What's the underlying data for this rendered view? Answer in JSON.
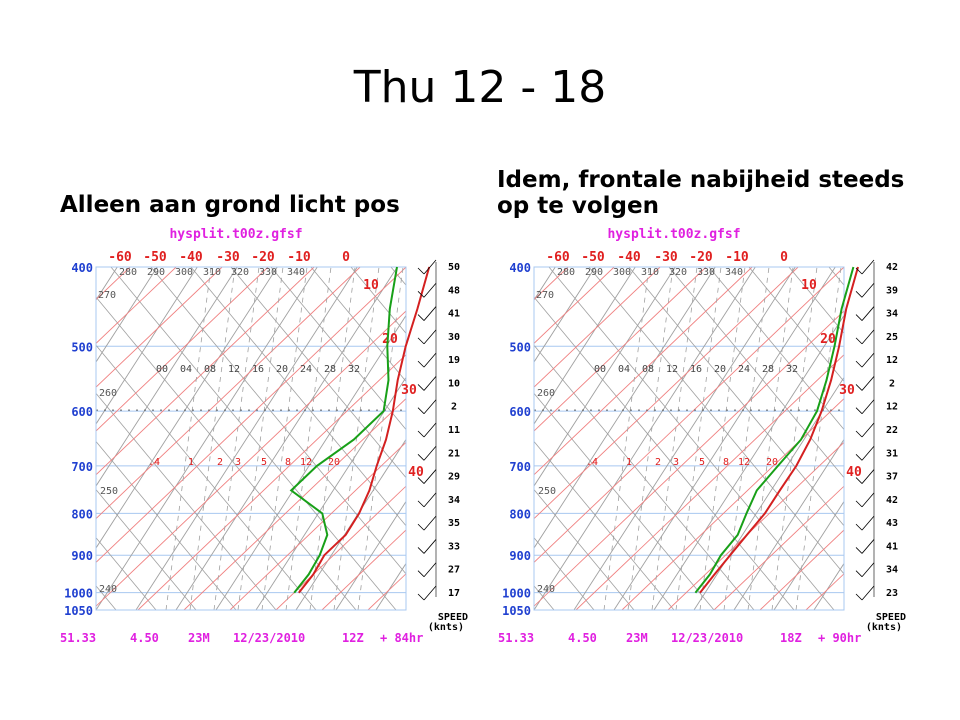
{
  "slide": {
    "title": "Thu 12 - 18",
    "left_caption": "Alleen aan grond licht pos",
    "right_caption": "Idem, frontale nabijheid steeds op te volgen"
  },
  "colors": {
    "temperature": "#d42020",
    "dewpoint": "#18a018",
    "isotherm": "#f08080",
    "dry_adiabat": "#a0a0a0",
    "pressure_label": "#2040d0",
    "temp_label": "#e02020",
    "footer": "#e020e0",
    "grid": "#a8c8f0"
  },
  "chart_data": [
    {
      "type": "line",
      "title": "hysplit.t00z.gfsf",
      "y_axis": {
        "label": "pressure (hPa)",
        "ticks": [
          "400",
          "500",
          "600",
          "700",
          "800",
          "900",
          "1000",
          "1050"
        ],
        "range": [
          400,
          1050
        ],
        "scale": "log"
      },
      "x_axis": {
        "label": "temperature (C), skewed",
        "ticks": [
          "-60",
          "-50",
          "-40",
          "-30",
          "-20",
          "-10",
          "0",
          "10",
          "20",
          "30",
          "40"
        ],
        "range": [
          -40,
          40
        ]
      },
      "potential_temp_labels": [
        "280",
        "290",
        "300",
        "310",
        "320",
        "330",
        "340",
        "270",
        "260",
        "250",
        "240"
      ],
      "mixing_ratio_labels_upper": [
        "00",
        "04",
        "08",
        "12",
        "16",
        "20",
        "24",
        "28",
        "32"
      ],
      "mixing_ratio_labels_lower": [
        ".4",
        "1",
        "2",
        "3",
        "5",
        "8",
        "12",
        "20"
      ],
      "series": [
        {
          "name": "temperature",
          "p": [
            1000,
            950,
            900,
            850,
            800,
            750,
            700,
            650,
            600,
            550,
            500,
            450,
            400
          ],
          "t": [
            11,
            10,
            8,
            8,
            6,
            3,
            -1,
            -5,
            -10,
            -16,
            -22,
            -28,
            -35
          ]
        },
        {
          "name": "dewpoint",
          "p": [
            1000,
            950,
            900,
            850,
            800,
            750,
            700,
            650,
            600,
            550,
            500,
            450,
            400
          ],
          "t": [
            10,
            9,
            7,
            4,
            -2,
            -14,
            -14,
            -12,
            -12,
            -18,
            -26,
            -34,
            -42
          ]
        }
      ],
      "wind_speeds_knots": [
        "50",
        "48",
        "41",
        "30",
        "19",
        "10",
        "2",
        "11",
        "21",
        "29",
        "34",
        "35",
        "33",
        "27",
        "17"
      ],
      "wind_legend": [
        "SPEED",
        "(knts)"
      ],
      "footer": {
        "lat": "51.33",
        "lon": "4.50",
        "elev": "23M",
        "date": "12/23/2010",
        "time": "12Z",
        "forecast": "+ 84hr"
      }
    },
    {
      "type": "line",
      "title": "hysplit.t00z.gfsf",
      "y_axis": {
        "label": "pressure (hPa)",
        "ticks": [
          "400",
          "500",
          "600",
          "700",
          "800",
          "900",
          "1000",
          "1050"
        ],
        "range": [
          400,
          1050
        ],
        "scale": "log"
      },
      "x_axis": {
        "label": "temperature (C), skewed",
        "ticks": [
          "-60",
          "-50",
          "-40",
          "-30",
          "-20",
          "-10",
          "0",
          "10",
          "20",
          "30",
          "40"
        ],
        "range": [
          -40,
          40
        ]
      },
      "potential_temp_labels": [
        "280",
        "290",
        "300",
        "310",
        "320",
        "330",
        "340",
        "270",
        "260",
        "250",
        "240"
      ],
      "mixing_ratio_labels_upper": [
        "00",
        "04",
        "08",
        "12",
        "16",
        "20",
        "24",
        "28",
        "32"
      ],
      "mixing_ratio_labels_lower": [
        ".4",
        "1",
        "2",
        "3",
        "5",
        "8",
        "12",
        "20"
      ],
      "series": [
        {
          "name": "temperature",
          "p": [
            1000,
            950,
            900,
            850,
            800,
            750,
            700,
            650,
            600,
            550,
            500,
            450,
            400
          ],
          "t": [
            3,
            2,
            1,
            0,
            -1,
            -3,
            -5,
            -8,
            -12,
            -17,
            -23,
            -30,
            -37
          ]
        },
        {
          "name": "dewpoint",
          "p": [
            1000,
            950,
            900,
            850,
            800,
            750,
            700,
            650,
            600,
            550,
            500,
            450,
            400
          ],
          "t": [
            2,
            1,
            -1,
            -2,
            -5,
            -8,
            -9,
            -10,
            -13,
            -18,
            -24,
            -31,
            -38
          ]
        }
      ],
      "wind_speeds_knots": [
        "42",
        "39",
        "34",
        "25",
        "12",
        "2",
        "12",
        "22",
        "31",
        "37",
        "42",
        "43",
        "41",
        "34",
        "23"
      ],
      "wind_legend": [
        "SPEED",
        "(knts)"
      ],
      "footer": {
        "lat": "51.33",
        "lon": "4.50",
        "elev": "23M",
        "date": "12/23/2010",
        "time": "18Z",
        "forecast": "+ 90hr"
      }
    }
  ]
}
